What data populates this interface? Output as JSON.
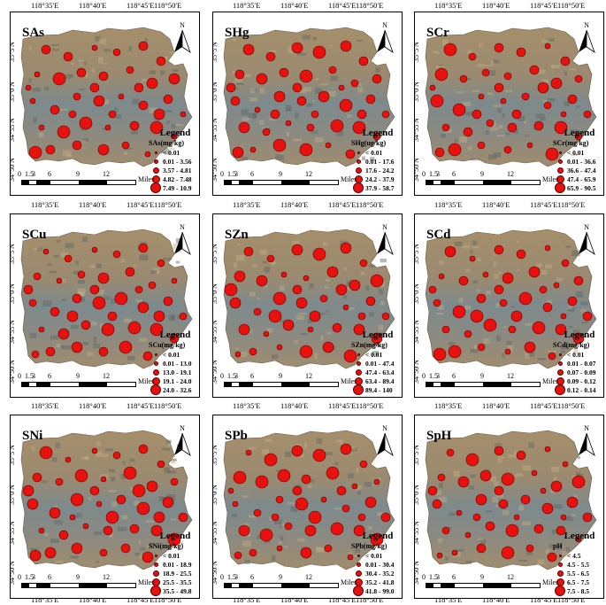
{
  "lon_labels": [
    "118°35′E",
    "118°40′E",
    "118°45′E",
    "118°50′E"
  ],
  "lat_labels": [
    "35°5′N",
    "35°0′N",
    "34°55′N",
    "34°50′N"
  ],
  "north_label": "N",
  "legend_title": "Legend",
  "scale": {
    "ticks": [
      "0",
      "1.5",
      "3",
      "6",
      "9",
      "12"
    ],
    "unit": "Miles"
  },
  "symbol_color": "#e8110d",
  "panels": [
    {
      "title": "SAs",
      "unit": "SAs(mg/kg)",
      "classes": [
        "< 0.01",
        "0.01 - 3.56",
        "3.57 - 4.81",
        "4.82 - 7.48",
        "7.49 - 10.9"
      ]
    },
    {
      "title": "SHg",
      "unit": "SHg(ug/kg)",
      "classes": [
        "< 0.01",
        "0.01 - 17.6",
        "17.6 - 24.2",
        "24.2 - 37.9",
        "37.9 - 58.7"
      ]
    },
    {
      "title": "SCr",
      "unit": "SCr(mg/kg)",
      "classes": [
        "< 0.01",
        "0.01 - 36.6",
        "36.6 - 47.4",
        "47.4 - 65.9",
        "65.9 - 90.5"
      ]
    },
    {
      "title": "SCu",
      "unit": "SCu(mg/kg)",
      "classes": [
        "< 0.01",
        "0.01 - 13.0",
        "13.0 - 19.1",
        "19.1 - 24.0",
        "24.0 - 32.6"
      ]
    },
    {
      "title": "SZn",
      "unit": "SZn(mg/kg)",
      "classes": [
        "< 0.01",
        "0.01 - 47.4",
        "47.4 - 63.4",
        "63.4 - 89.4",
        "89.4 - 140"
      ]
    },
    {
      "title": "SCd",
      "unit": "SCd(mg/kg)",
      "classes": [
        "< 0.01",
        "0.01 - 0.07",
        "0.07 - 0.09",
        "0.09 - 0.12",
        "0.12 - 0.14"
      ]
    },
    {
      "title": "SNi",
      "unit": "SNi(mg/kg)",
      "classes": [
        "< 0.01",
        "0.01 - 18.9",
        "18.9 - 25.5",
        "25.5 - 35.5",
        "35.5 - 49.8"
      ]
    },
    {
      "title": "SPb",
      "unit": "SPb(mg/kg)",
      "classes": [
        "< 0.01",
        "0.01 - 30.4",
        "30.4 - 35.2",
        "35.2 - 41.8",
        "41.8 - 99.0"
      ]
    },
    {
      "title": "SpH",
      "unit": "pH",
      "classes": [
        "< 4.5",
        "4.5 - 5.5",
        "5.5 - 6.5",
        "6.5 - 7.5",
        "7.5 - 8.5"
      ]
    }
  ]
}
